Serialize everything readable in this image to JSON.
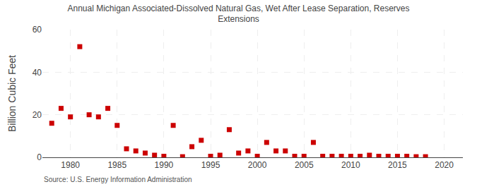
{
  "chart_data": {
    "type": "scatter",
    "title": "Annual Michigan Associated-Dissolved Natural Gas, Wet After Lease Separation, Reserves\nExtensions",
    "ylabel": "Billion Cubic Feet",
    "annotations": [
      "Source: U.S. Energy Information Administration"
    ],
    "x": [
      1978,
      1979,
      1980,
      1981,
      1982,
      1983,
      1984,
      1985,
      1986,
      1987,
      1988,
      1989,
      1990,
      1991,
      1992,
      1993,
      1994,
      1995,
      1996,
      1997,
      1998,
      1999,
      2000,
      2001,
      2002,
      2003,
      2004,
      2005,
      2006,
      2007,
      2008,
      2009,
      2010,
      2011,
      2012,
      2013,
      2014,
      2015,
      2016,
      2017,
      2018
    ],
    "values": [
      16,
      23,
      19,
      52,
      20,
      19,
      23,
      15,
      4,
      3,
      2,
      1,
      0.5,
      15,
      0.3,
      5,
      8,
      0.5,
      1,
      13,
      2,
      3,
      0.5,
      7,
      3,
      3,
      0.5,
      0.5,
      7,
      0.5,
      0.5,
      0.5,
      0.5,
      0.5,
      1,
      0.5,
      0.5,
      0.5,
      0.5,
      0.3,
      0.3
    ],
    "color": "#cc0000",
    "marker": "square",
    "xlim": [
      1977,
      2022
    ],
    "xticks": [
      1980,
      1985,
      1990,
      1995,
      2000,
      2005,
      2010,
      2015,
      2020
    ],
    "ylim": [
      0,
      60
    ],
    "yticks": [
      0,
      20,
      40,
      60
    ],
    "grid": true
  }
}
